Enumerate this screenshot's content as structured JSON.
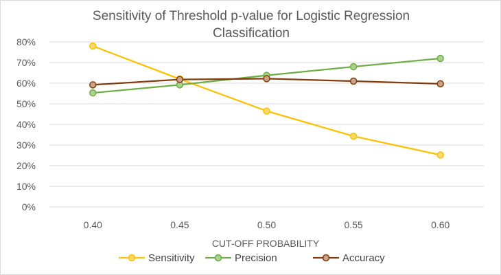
{
  "chart_data": {
    "type": "line",
    "title": "Sensitivity of Threshold p-value for Logistic Regression Classification",
    "title_lines": [
      "Sensitivity of Threshold p-value for Logistic Regression",
      "Classification"
    ],
    "xlabel": "CUT-OFF PROBABILITY",
    "ylabel": "",
    "categories": [
      "0.40",
      "0.45",
      "0.50",
      "0.55",
      "0.60"
    ],
    "y_ticks": [
      "0%",
      "10%",
      "20%",
      "30%",
      "40%",
      "50%",
      "60%",
      "70%",
      "80%"
    ],
    "ylim": [
      0,
      0.8
    ],
    "grid": true,
    "legend_position": "bottom",
    "series": [
      {
        "name": "Sensitivity",
        "color": "#FFC000",
        "marker_fill": "#FFD966",
        "values": [
          0.78,
          0.62,
          0.465,
          0.343,
          0.252
        ]
      },
      {
        "name": "Precision",
        "color": "#70AD47",
        "marker_fill": "#A9D18E",
        "values": [
          0.553,
          0.592,
          0.638,
          0.68,
          0.72
        ]
      },
      {
        "name": "Accuracy",
        "color": "#843C0C",
        "marker_fill": "#C9A38A",
        "values": [
          0.592,
          0.618,
          0.622,
          0.61,
          0.597
        ]
      }
    ]
  }
}
